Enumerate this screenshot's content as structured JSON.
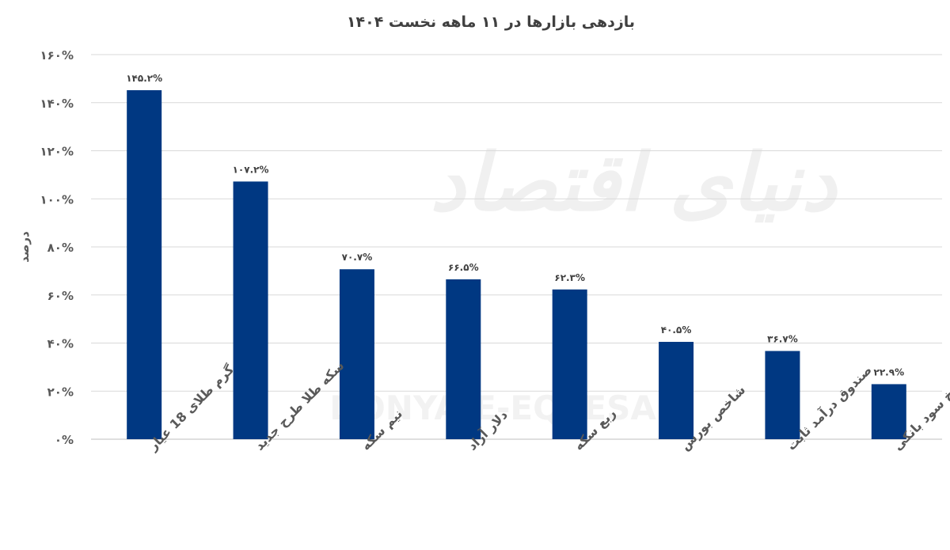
{
  "chart_data": {
    "type": "bar",
    "title": "بازدهی بازارها در ۱۱ ماهه نخست ۱۴۰۴",
    "ylabel": "درصد",
    "xlabel": "",
    "ylim": [
      0,
      160
    ],
    "yticks": [
      0,
      20,
      40,
      60,
      80,
      100,
      120,
      140,
      160
    ],
    "ytick_labels": [
      "۰%",
      "۲۰%",
      "۴۰%",
      "۶۰%",
      "۸۰%",
      "۱۰۰%",
      "۱۲۰%",
      "۱۴۰%",
      "۱۶۰%"
    ],
    "grid": true,
    "bar_color": "#003882",
    "categories": [
      "گرم طلای 18 عیار",
      "سکه طلا طرح جدید",
      "نیم سکه",
      "دلار آزاد",
      "ربع سکه",
      "شاخص بورس",
      "صندوق درآمد ثابت",
      "نرخ سود بانکی"
    ],
    "values": [
      145.2,
      107.2,
      70.7,
      66.5,
      62.3,
      40.5,
      36.7,
      22.9
    ],
    "data_labels": [
      "۱۴۵.۲%",
      "۱۰۷.۲%",
      "۷۰.۷%",
      "۶۶.۵%",
      "۶۲.۳%",
      "۴۰.۵%",
      "۳۶.۷%",
      "۲۲.۹%"
    ]
  },
  "watermark": {
    "text_fa": "دنیای اقتصاد",
    "text_en": "DONYA-E-EQTESAD"
  }
}
